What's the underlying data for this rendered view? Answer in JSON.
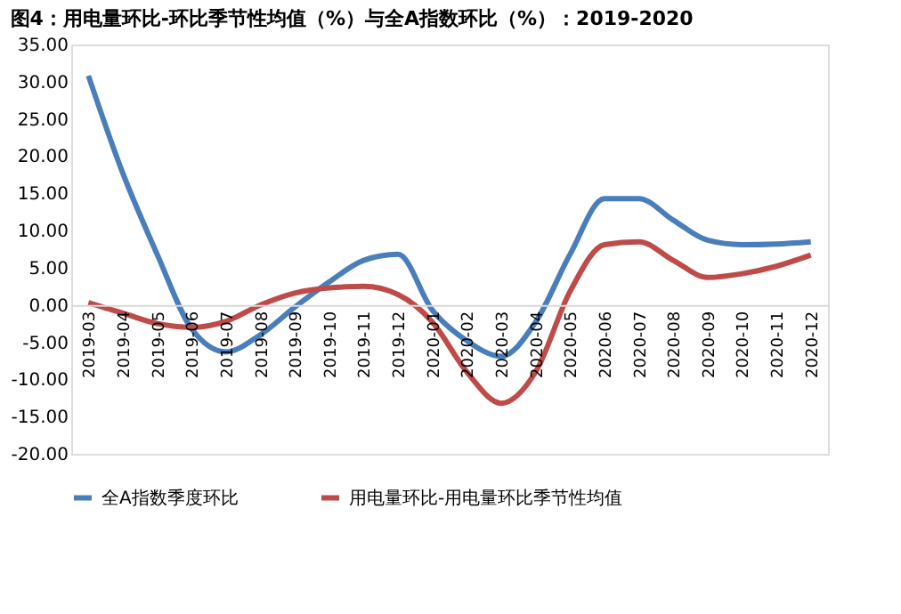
{
  "chart_data": {
    "type": "line",
    "title": "图4：用电量环比-环比季节性均值（%）与全A指数环比（%）：2019-2020",
    "categories": [
      "2019-03",
      "2019-04",
      "2019-05",
      "2019-06",
      "2019-07",
      "2019-08",
      "2019-09",
      "2019-10",
      "2019-11",
      "2019-12",
      "2020-01",
      "2020-02",
      "2020-03",
      "2020-04",
      "2020-05",
      "2020-06",
      "2020-07",
      "2020-08",
      "2020-09",
      "2020-10",
      "2020-11",
      "2020-12"
    ],
    "series": [
      {
        "name": "全A指数季度环比",
        "color": "#4a7ebb",
        "values": [
          30.8,
          17.7,
          6.8,
          -3.2,
          -6.3,
          -4.0,
          -0.3,
          3.1,
          6.0,
          6.8,
          -0.7,
          -4.8,
          -6.9,
          -2.3,
          6.8,
          14.3,
          14.3,
          11.4,
          8.7,
          8.1,
          8.2,
          8.5
        ]
      },
      {
        "name": "用电量环比-用电量环比季节性均值",
        "color": "#be4b48",
        "values": [
          0.3,
          -1.1,
          -2.5,
          -3.0,
          -2.2,
          0.0,
          1.6,
          2.3,
          2.5,
          1.4,
          -2.3,
          -9.0,
          -13.2,
          -9.0,
          1.8,
          8.1,
          8.5,
          6.0,
          3.7,
          4.2,
          5.2,
          6.7
        ]
      }
    ],
    "ylim": [
      -20,
      35
    ],
    "yticks": [
      {
        "value": -20,
        "label": "-20.00"
      },
      {
        "value": -15,
        "label": "-15.00"
      },
      {
        "value": -10,
        "label": "-10.00"
      },
      {
        "value": -5,
        "label": "-5.00"
      },
      {
        "value": 0,
        "label": "0.00"
      },
      {
        "value": 5,
        "label": "5.00"
      },
      {
        "value": 10,
        "label": "10.00"
      },
      {
        "value": 15,
        "label": "15.00"
      },
      {
        "value": 20,
        "label": "20.00"
      },
      {
        "value": 25,
        "label": "25.00"
      },
      {
        "value": 30,
        "label": "30.00"
      },
      {
        "value": 35,
        "label": "35.00"
      }
    ],
    "grid": false,
    "legend": "bottom",
    "marker": "none",
    "line_style": "solid"
  }
}
